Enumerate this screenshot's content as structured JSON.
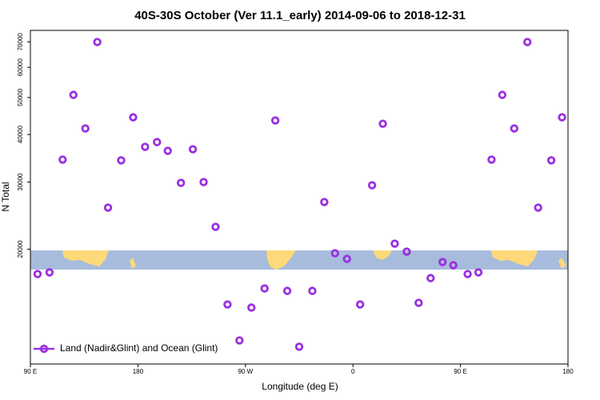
{
  "chart_data": {
    "type": "scatter",
    "title": "40S-30S October (Ver 11.1_early)   2014-09-06 to 2018-12-31",
    "x_label": "Longitude (deg E)",
    "y_label": "N Total",
    "log_scale_y": true,
    "xlim": [
      90,
      540
    ],
    "xticks": [
      {
        "value": 90,
        "label": "90 E"
      },
      180,
      {
        "value": 270,
        "label": "90 W"
      },
      {
        "value": 360,
        "label": "0"
      },
      {
        "value": 450,
        "label": "90 E"
      },
      {
        "value": 540,
        "label": "180"
      }
    ],
    "ylim": [
      10000,
      75000
    ],
    "yticks": [
      20000,
      30000,
      40000,
      50000,
      60000,
      70000
    ],
    "legend": "bottom-left",
    "x": [
      96,
      106,
      117,
      126,
      136,
      146,
      155,
      166,
      176,
      186,
      196,
      205,
      216,
      226,
      235,
      245,
      255,
      265,
      275,
      286,
      295,
      305,
      315,
      326,
      336,
      345,
      355,
      366,
      376,
      385,
      395,
      405,
      415,
      425,
      435,
      444,
      456,
      465,
      476,
      485,
      495,
      506,
      515,
      526,
      535
    ],
    "series": [
      {
        "name": "Land (Nadir&Glint) and Ocean (Glint)",
        "color": "#9a2fe0",
        "values": [
          17220,
          17390,
          34360,
          50800,
          41480,
          69900,
          25710,
          34220,
          44370,
          37120,
          38200,
          36240,
          29860,
          36590,
          30010,
          22900,
          14330,
          11530,
          14060,
          15780,
          43540,
          15550,
          11100,
          15550,
          26600,
          19520,
          18870,
          14330,
          29430,
          42680,
          20690,
          19710,
          14470,
          16800,
          18510,
          18160,
          17220,
          17390,
          34360,
          50800,
          41480,
          69900,
          25710,
          34220,
          44370
        ]
      }
    ]
  }
}
